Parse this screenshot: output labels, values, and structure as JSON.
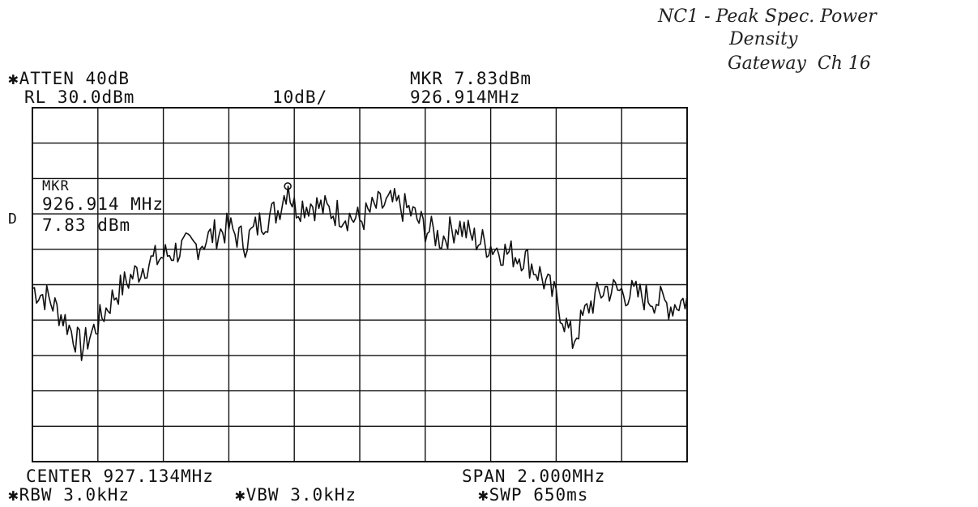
{
  "annotations": {
    "handwritten_line1": "NC1 - Peak Spec. Power",
    "handwritten_line2": "Density",
    "handwritten_line3": "Gateway  Ch 16"
  },
  "header": {
    "atten": "✱ATTEN 40dB",
    "ref_level": "RL 30.0dBm",
    "scale": "10dB/",
    "marker_level": "MKR 7.83dBm",
    "marker_freq": "926.914MHz"
  },
  "marker_box": {
    "label": "MKR",
    "freq": "926.914 MHz",
    "level": "7.83 dBm"
  },
  "side_label": "D",
  "footer": {
    "center": "CENTER 927.134MHz",
    "span": "SPAN 2.000MHz",
    "rbw": "✱RBW 3.0kHz",
    "vbw": "✱VBW 3.0kHz",
    "sweep": "✱SWP 650ms"
  },
  "chart_data": {
    "type": "line",
    "x_unit": "MHz",
    "y_unit": "dBm",
    "xlim": [
      926.134,
      928.134
    ],
    "ylim": [
      -70,
      30
    ],
    "grid": true,
    "marker": {
      "x": 926.914,
      "y": 7.83
    },
    "series": [
      {
        "x": [
          926.134,
          926.184,
          926.234,
          926.284,
          926.334,
          926.384,
          926.434,
          926.484,
          926.534,
          926.584,
          926.634,
          926.684,
          926.734,
          926.784,
          926.834,
          926.884,
          926.914,
          926.934,
          926.984,
          927.034,
          927.084,
          927.134,
          927.184,
          927.234,
          927.284,
          927.334,
          927.384,
          927.434,
          927.484,
          927.534,
          927.584,
          927.634,
          927.684,
          927.734,
          927.784,
          927.834,
          927.884,
          927.934,
          927.984,
          928.034,
          928.084,
          928.134
        ],
        "y": [
          -21,
          -24,
          -30,
          -38,
          -31,
          -23,
          -18,
          -14,
          -12,
          -10,
          -9,
          -6,
          -4,
          -8,
          -2,
          1,
          7.83,
          2,
          3,
          1,
          0,
          -2,
          2,
          3,
          1,
          -4,
          -7,
          -3,
          -7,
          -9,
          -11,
          -12,
          -17,
          -24,
          -36,
          -26,
          -21,
          -22,
          -23,
          -24,
          -26,
          -24
        ]
      }
    ]
  }
}
